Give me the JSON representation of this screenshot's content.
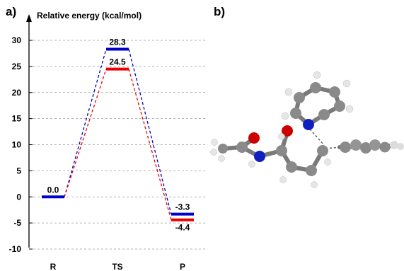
{
  "panels": {
    "a_label": "a)",
    "b_label": "b)"
  },
  "chart_data": {
    "type": "energy-profile",
    "ylabel": "Relative energy (kcal/mol)",
    "xlabel": "",
    "ylim": [
      -10,
      30
    ],
    "yticks": [
      30,
      25,
      20,
      15,
      10,
      5,
      0,
      -5,
      -10
    ],
    "grid": "dashed horizontal",
    "categories": [
      "R",
      "TS",
      "P"
    ],
    "series": [
      {
        "color": "#0000cc",
        "values": [
          0.0,
          28.3,
          -3.3
        ]
      },
      {
        "color": "#ee0000",
        "values": [
          null,
          24.5,
          -4.4
        ]
      }
    ],
    "data_labels": [
      {
        "category": "R",
        "text": "0.0",
        "position": "above"
      },
      {
        "category": "TS",
        "text": "28.3",
        "position": "above"
      },
      {
        "category": "TS",
        "text": "24.5",
        "position": "above"
      },
      {
        "category": "P",
        "text": "-3.3",
        "position": "above"
      },
      {
        "category": "P",
        "text": "-4.4",
        "position": "below"
      }
    ]
  },
  "molecule": {
    "colors": {
      "carbon": "#8a8a8a",
      "hydrogen": "#e6e6e6",
      "oxygen": "#cc0000",
      "nitrogen": "#1020c0"
    }
  }
}
